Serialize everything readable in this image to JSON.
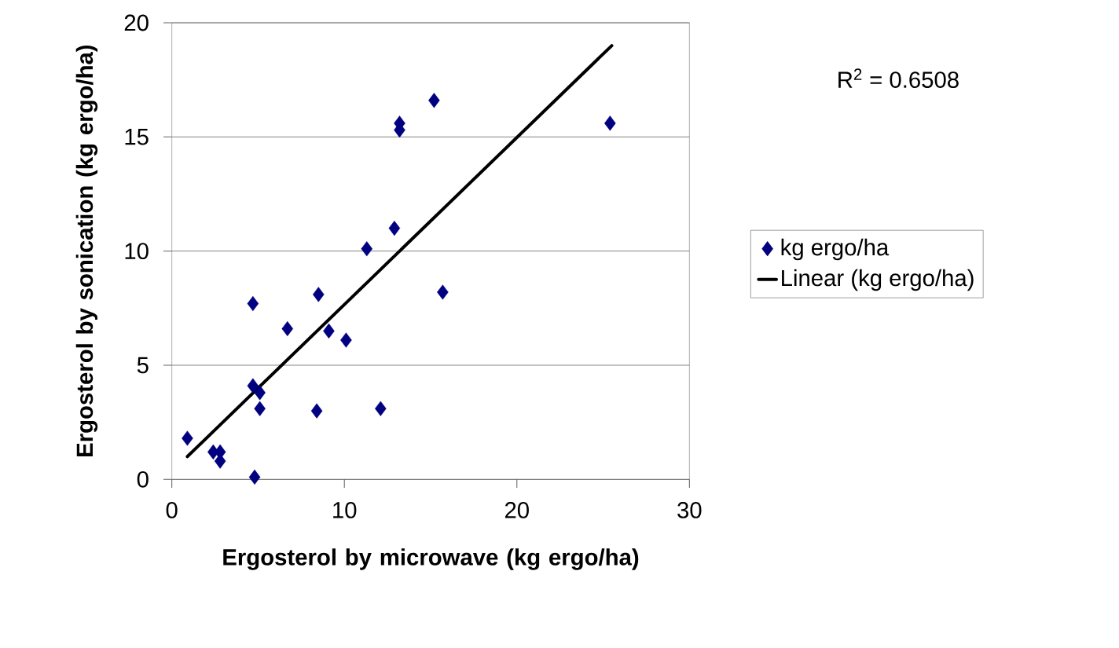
{
  "chart_data": {
    "type": "scatter",
    "xlabel": "Ergosterol by microwave (kg ergo/ha)",
    "ylabel": "Ergosterol by sonication (kg ergo/ha)",
    "xlim": [
      0,
      30
    ],
    "ylim": [
      0,
      20
    ],
    "xticks": [
      0,
      10,
      20,
      30
    ],
    "yticks": [
      0,
      5,
      10,
      15,
      20
    ],
    "grid": "y",
    "legend": "right",
    "marker": "diamond",
    "annotations": [
      "R$^{2}$ = 0.6508"
    ],
    "series": [
      {
        "name": "kg ergo/ha",
        "color": "#000080",
        "x": [
          0.9,
          2.4,
          2.8,
          2.8,
          4.8,
          4.7,
          5.1,
          5.1,
          4.7,
          6.7,
          8.5,
          9.1,
          10.1,
          8.4,
          12.1,
          11.3,
          15.7,
          12.9,
          15.2,
          13.2,
          13.2,
          25.4
        ],
        "values": [
          1.8,
          1.2,
          1.2,
          0.8,
          0.1,
          4.1,
          3.8,
          3.1,
          7.7,
          6.6,
          8.1,
          6.5,
          6.1,
          3.0,
          3.1,
          10.1,
          8.2,
          11.0,
          16.6,
          15.6,
          15.3,
          15.6
        ]
      },
      {
        "name": "Linear (kg ergo/ha)",
        "type": "line",
        "marker": "none",
        "color": "#000000",
        "x": [
          0.9,
          25.5
        ],
        "values": [
          1.0,
          19.0
        ]
      }
    ]
  }
}
